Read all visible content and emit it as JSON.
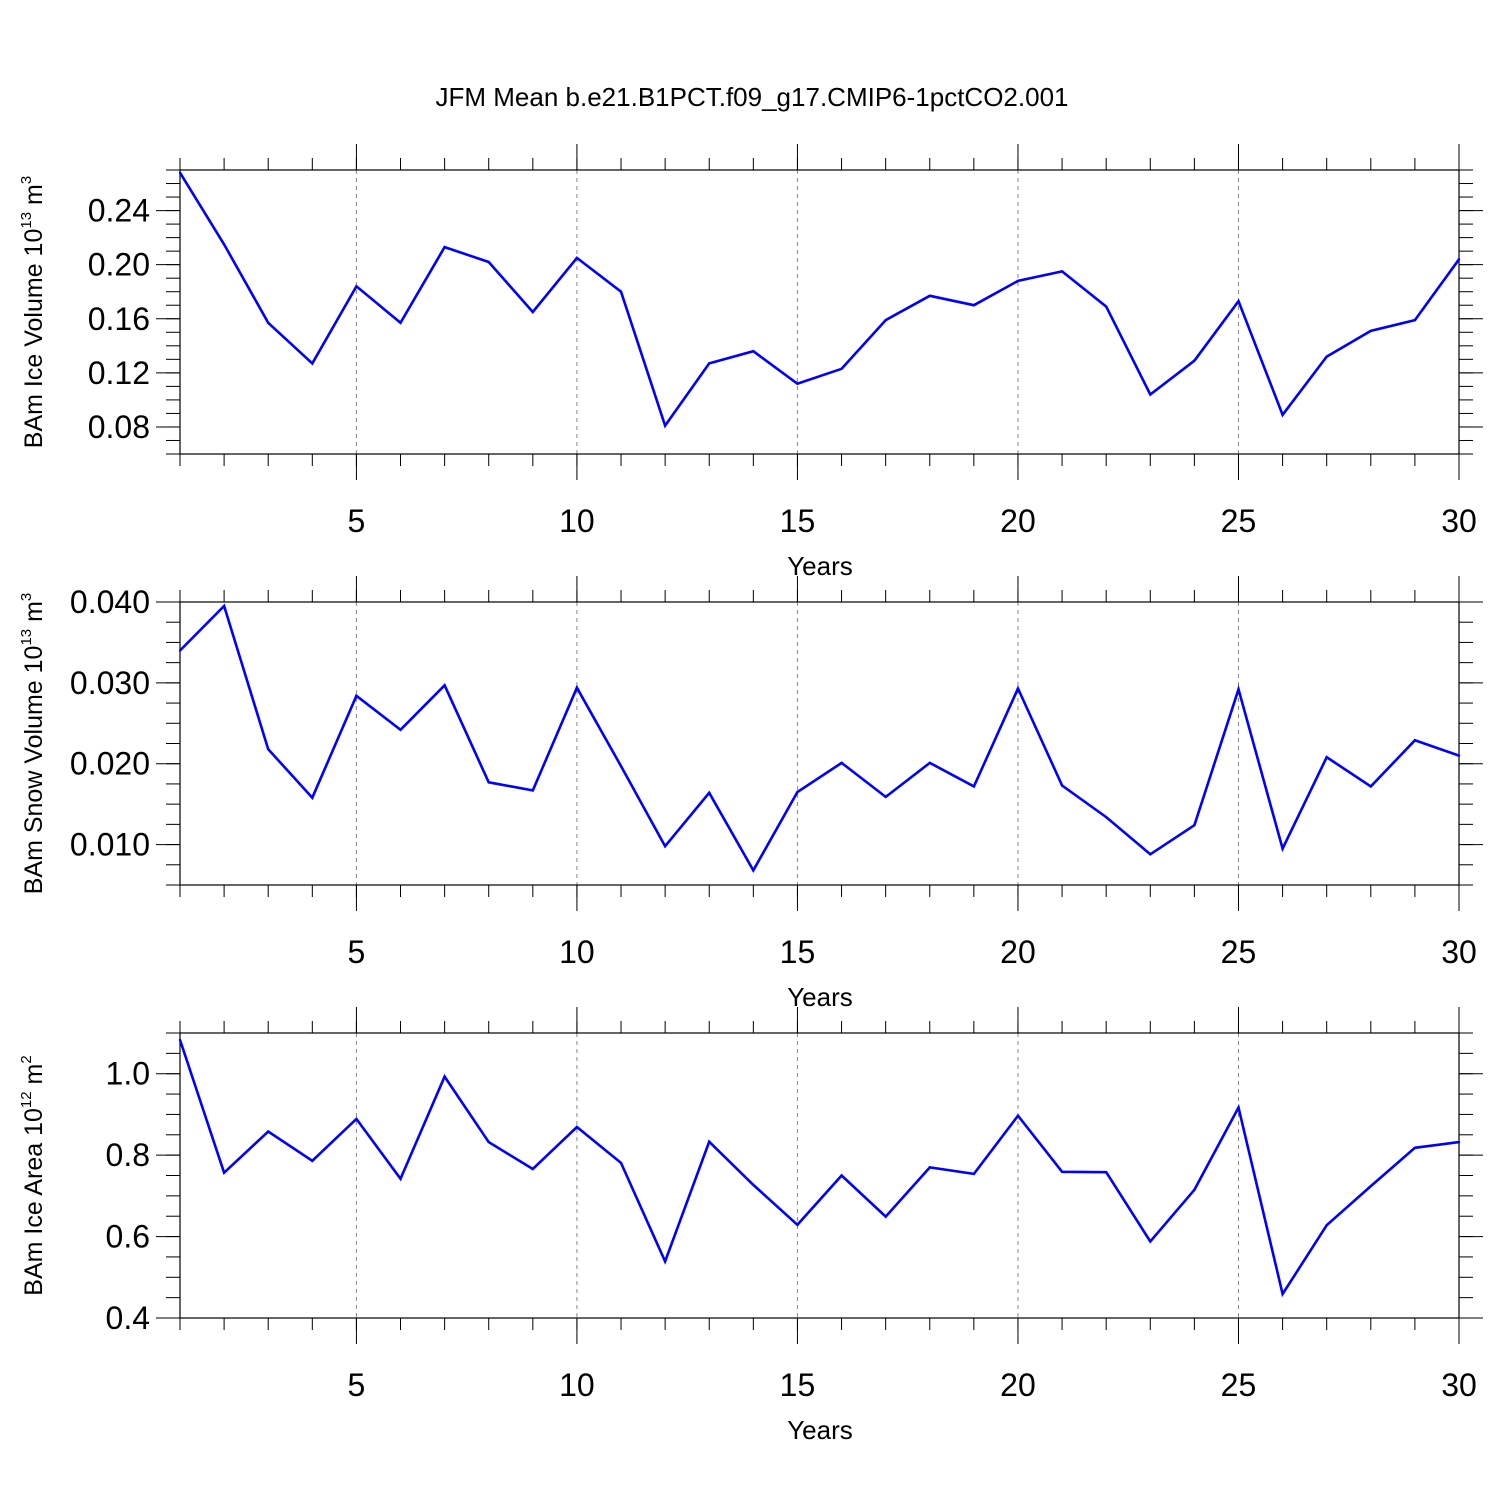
{
  "title": "JFM Mean b.e21.B1PCT.f09_g17.CMIP6-1pctCO2.001",
  "line_color": "#0000ff",
  "chart_data": [
    {
      "type": "line",
      "ylabel": "BAm Ice Volume 10",
      "ylabel_exp": "13",
      "ylabel_unit": " m",
      "ylabel_unit_exp": "3",
      "xlabel": "Years",
      "xlim": [
        1,
        30
      ],
      "ylim": [
        0.06,
        0.27
      ],
      "x_ticks": [
        "5",
        "10",
        "15",
        "20",
        "25",
        "30"
      ],
      "y_ticks": [
        "0.08",
        "0.12",
        "0.16",
        "0.20",
        "0.24"
      ],
      "grid": "vertical dashed at major x ticks",
      "x": [
        1,
        2,
        3,
        4,
        5,
        6,
        7,
        8,
        9,
        10,
        11,
        12,
        13,
        14,
        15,
        16,
        17,
        18,
        19,
        20,
        21,
        22,
        23,
        24,
        25,
        26,
        27,
        28,
        29,
        30
      ],
      "values": [
        0.268,
        0.215,
        0.157,
        0.127,
        0.184,
        0.157,
        0.213,
        0.202,
        0.165,
        0.205,
        0.18,
        0.081,
        0.127,
        0.136,
        0.112,
        0.123,
        0.159,
        0.177,
        0.17,
        0.188,
        0.195,
        0.169,
        0.104,
        0.129,
        0.173,
        0.089,
        0.132,
        0.151,
        0.159,
        0.204
      ]
    },
    {
      "type": "line",
      "ylabel": "BAm Snow Volume 10",
      "ylabel_exp": "13",
      "ylabel_unit": " m",
      "ylabel_unit_exp": "3",
      "xlabel": "Years",
      "xlim": [
        1,
        30
      ],
      "ylim": [
        0.005,
        0.04
      ],
      "x_ticks": [
        "5",
        "10",
        "15",
        "20",
        "25",
        "30"
      ],
      "y_ticks": [
        "0.010",
        "0.020",
        "0.030",
        "0.040"
      ],
      "grid": "vertical dashed at major x ticks",
      "x": [
        1,
        2,
        3,
        4,
        5,
        6,
        7,
        8,
        9,
        10,
        11,
        12,
        13,
        14,
        15,
        16,
        17,
        18,
        19,
        20,
        21,
        22,
        23,
        24,
        25,
        26,
        27,
        28,
        29,
        30
      ],
      "values": [
        0.034,
        0.0395,
        0.0218,
        0.0158,
        0.0284,
        0.0242,
        0.0297,
        0.0177,
        0.0167,
        0.0294,
        0.0197,
        0.0098,
        0.0164,
        0.0068,
        0.0165,
        0.0201,
        0.0159,
        0.0201,
        0.0172,
        0.0293,
        0.0173,
        0.0134,
        0.0088,
        0.0124,
        0.0292,
        0.0095,
        0.0208,
        0.0172,
        0.0229,
        0.021
      ]
    },
    {
      "type": "line",
      "ylabel": "BAm Ice Area 10",
      "ylabel_exp": "12",
      "ylabel_unit": " m",
      "ylabel_unit_exp": "2",
      "xlabel": "Years",
      "xlim": [
        1,
        30
      ],
      "ylim": [
        0.4,
        1.1
      ],
      "x_ticks": [
        "5",
        "10",
        "15",
        "20",
        "25",
        "30"
      ],
      "y_ticks": [
        "0.4",
        "0.6",
        "0.8",
        "1.0"
      ],
      "grid": "vertical dashed at major x ticks",
      "x": [
        1,
        2,
        3,
        4,
        5,
        6,
        7,
        8,
        9,
        10,
        11,
        12,
        13,
        14,
        15,
        16,
        17,
        18,
        19,
        20,
        21,
        22,
        23,
        24,
        25,
        26,
        27,
        28,
        29,
        30
      ],
      "values": [
        1.083,
        0.757,
        0.858,
        0.786,
        0.889,
        0.742,
        0.993,
        0.832,
        0.766,
        0.869,
        0.781,
        0.539,
        0.833,
        0.727,
        0.629,
        0.75,
        0.649,
        0.77,
        0.754,
        0.897,
        0.759,
        0.758,
        0.588,
        0.715,
        0.917,
        0.459,
        0.628,
        0.724,
        0.818,
        0.832
      ]
    }
  ]
}
